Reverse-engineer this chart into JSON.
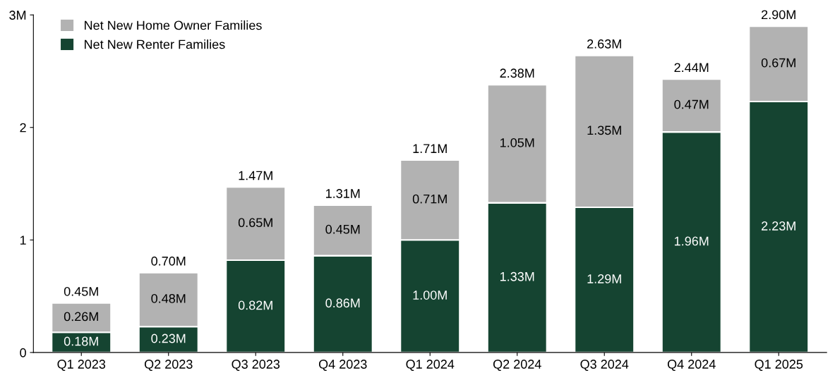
{
  "chart_data": {
    "type": "bar",
    "stacked": true,
    "categories": [
      "Q1 2023",
      "Q2 2023",
      "Q3 2023",
      "Q4 2023",
      "Q1 2024",
      "Q2 2024",
      "Q3 2024",
      "Q4 2024",
      "Q1 2025"
    ],
    "series": [
      {
        "name": "Net New Renter Families",
        "color": "#154431",
        "values": [
          0.18,
          0.23,
          0.82,
          0.86,
          1.0,
          1.33,
          1.29,
          1.96,
          2.23
        ],
        "value_labels": [
          "0.18M",
          "0.23M",
          "0.82M",
          "0.86M",
          "1.00M",
          "1.33M",
          "1.29M",
          "1.96M",
          "2.23M"
        ]
      },
      {
        "name": "Net New Home Owner Families",
        "color": "#b2b2b2",
        "values": [
          0.26,
          0.48,
          0.65,
          0.45,
          0.71,
          1.05,
          1.35,
          0.47,
          0.67
        ],
        "value_labels": [
          "0.26M",
          "0.48M",
          "0.65M",
          "0.45M",
          "0.71M",
          "1.05M",
          "1.35M",
          "0.47M",
          "0.67M"
        ]
      }
    ],
    "totals": [
      "0.45M",
      "0.70M",
      "1.47M",
      "1.31M",
      "1.71M",
      "2.38M",
      "2.63M",
      "2.44M",
      "2.90M"
    ],
    "ylim": [
      0,
      3
    ],
    "yticks": [
      0,
      1,
      2,
      {
        "value": 3,
        "label": "3M"
      }
    ],
    "legend": "top left",
    "grid": false
  }
}
